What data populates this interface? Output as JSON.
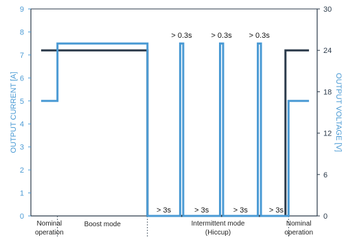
{
  "chart_data": {
    "type": "line",
    "ylabel_left": "OUTPUT CURRENT [A]",
    "ylabel_right": "OUTPUT VOLTAGE [V]",
    "ylim_left": [
      0,
      9
    ],
    "ylim_right": [
      0,
      30
    ],
    "y_ticks_left": [
      "0",
      "1",
      "2",
      "3",
      "4",
      "5",
      "6",
      "7",
      "8",
      "9"
    ],
    "y_ticks_right": [
      "0",
      "6",
      "12",
      "18",
      "24",
      "30"
    ],
    "grid": false,
    "series": [
      {
        "color": "#4a9ad4",
        "axis": "left",
        "points": [
          [
            0.5,
            5
          ],
          [
            1.3,
            5
          ],
          [
            1.3,
            7.5
          ],
          [
            5.7,
            7.5
          ],
          [
            5.7,
            0
          ],
          [
            7.3,
            0
          ],
          [
            7.3,
            7.5
          ],
          [
            7.45,
            7.5
          ],
          [
            7.45,
            0
          ],
          [
            9.25,
            0
          ],
          [
            9.25,
            7.5
          ],
          [
            9.4,
            7.5
          ],
          [
            9.4,
            0
          ],
          [
            11.1,
            0
          ],
          [
            11.1,
            7.5
          ],
          [
            11.25,
            7.5
          ],
          [
            11.25,
            0
          ],
          [
            12.6,
            0
          ],
          [
            12.6,
            5
          ],
          [
            13.6,
            5
          ]
        ]
      },
      {
        "color": "#2b3a4a",
        "axis": "right",
        "points": [
          [
            0.5,
            24
          ],
          [
            5.7,
            24
          ],
          [
            5.7,
            0
          ],
          [
            12.45,
            0
          ],
          [
            12.45,
            24
          ],
          [
            13.6,
            24
          ]
        ]
      }
    ],
    "annotations": [
      {
        "text": "> 0.3s",
        "x": 7.37
      },
      {
        "text": "> 0.3s",
        "x": 9.32
      },
      {
        "text": "> 0.3s",
        "x": 11.17
      }
    ],
    "gap_labels": [
      {
        "text": "> 3s",
        "x": 6.5
      },
      {
        "text": "> 3s",
        "x": 8.35
      },
      {
        "text": "> 3s",
        "x": 10.25
      },
      {
        "text": "> 3s",
        "x": 12.0
      }
    ],
    "regions": [
      {
        "label": [
          "Nominal",
          "operation"
        ],
        "from": 0.5,
        "to": 1.3
      },
      {
        "label": [
          "Boost mode"
        ],
        "from": 1.3,
        "to": 5.7
      },
      {
        "label": [
          "Intermittent mode",
          "(Hiccup)"
        ],
        "from": 5.7,
        "to": 12.6
      },
      {
        "label": [
          "Nominal",
          "operation"
        ],
        "from": 12.6,
        "to": 13.6
      }
    ],
    "colors": {
      "current": "#4a9ad4",
      "voltage": "#2b3a4a"
    }
  }
}
